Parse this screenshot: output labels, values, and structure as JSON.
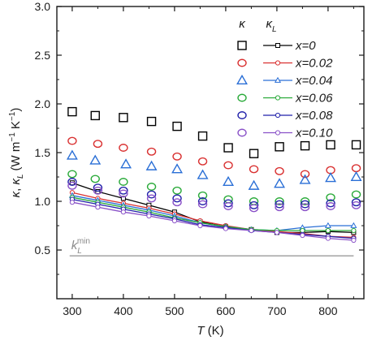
{
  "chart_data": {
    "type": "scatter",
    "xlabel_symbol": "T",
    "xlabel_unit": "(K)",
    "ylabel_symbols": [
      "κ",
      "κ",
      "L"
    ],
    "ylabel_unit_parts": [
      "(W m",
      "−1",
      " K",
      "−1",
      ")"
    ],
    "xlim": [
      270,
      870
    ],
    "ylim": [
      0.0,
      3.0
    ],
    "x_ticks": [
      300,
      400,
      500,
      600,
      700,
      800
    ],
    "y_ticks": [
      0.5,
      1.0,
      1.5,
      2.0,
      2.5,
      3.0
    ],
    "y_tick_labels": [
      "0.5",
      "1.0",
      "1.5",
      "2.0",
      "2.5",
      "3.0"
    ],
    "legend": {
      "placement": "top-right",
      "col1_header": "κ",
      "col2_header_base": "κ",
      "col2_header_sub": "L"
    },
    "min_line": {
      "y": 0.44,
      "x_range": [
        295,
        850
      ],
      "label_base": "k",
      "label_sub": "L",
      "label_sup": "min",
      "color": "#aaaaaa"
    },
    "series": [
      {
        "name": "x=0",
        "color": "#000000",
        "marker": "square",
        "kappa_x": [
          300,
          345,
          400,
          455,
          505,
          555,
          605,
          655,
          705,
          755,
          805,
          855
        ],
        "kappa_y": [
          1.92,
          1.88,
          1.86,
          1.82,
          1.77,
          1.67,
          1.55,
          1.49,
          1.56,
          1.57,
          1.58,
          1.58
        ],
        "kappaL_x": [
          300,
          350,
          400,
          450,
          500,
          550,
          600,
          650,
          700,
          750,
          800,
          850
        ],
        "kappaL_y": [
          1.19,
          1.1,
          1.03,
          0.96,
          0.89,
          0.79,
          0.74,
          0.71,
          0.68,
          0.68,
          0.69,
          0.68
        ]
      },
      {
        "name": "x=0.02",
        "color": "#d93030",
        "marker": "circle",
        "kappa_x": [
          300,
          350,
          400,
          455,
          505,
          555,
          605,
          655,
          705,
          755,
          805,
          855
        ],
        "kappa_y": [
          1.62,
          1.59,
          1.55,
          1.51,
          1.46,
          1.41,
          1.37,
          1.33,
          1.31,
          1.28,
          1.32,
          1.34
        ],
        "kappaL_x": [
          300,
          350,
          400,
          450,
          500,
          550,
          600,
          650,
          700,
          750,
          800,
          850
        ],
        "kappaL_y": [
          1.09,
          1.03,
          0.98,
          0.93,
          0.87,
          0.8,
          0.75,
          0.71,
          0.69,
          0.67,
          0.64,
          0.63
        ]
      },
      {
        "name": "x=0.04",
        "color": "#2a6fd6",
        "marker": "triangle",
        "kappa_x": [
          300,
          345,
          405,
          455,
          505,
          555,
          605,
          655,
          705,
          755,
          805,
          855
        ],
        "kappa_y": [
          1.47,
          1.42,
          1.38,
          1.36,
          1.33,
          1.27,
          1.2,
          1.16,
          1.18,
          1.22,
          1.24,
          1.25
        ],
        "kappaL_x": [
          300,
          350,
          400,
          450,
          500,
          550,
          600,
          650,
          700,
          750,
          800,
          850
        ],
        "kappaL_y": [
          1.06,
          1.01,
          0.96,
          0.91,
          0.85,
          0.78,
          0.74,
          0.71,
          0.7,
          0.73,
          0.75,
          0.75
        ]
      },
      {
        "name": "x=0.06",
        "color": "#2aaa3a",
        "marker": "circle",
        "kappa_x": [
          300,
          345,
          400,
          455,
          505,
          555,
          605,
          655,
          705,
          755,
          805,
          855
        ],
        "kappa_y": [
          1.28,
          1.23,
          1.2,
          1.15,
          1.11,
          1.06,
          1.02,
          1.0,
          1.0,
          1.0,
          1.04,
          1.07
        ],
        "kappaL_x": [
          300,
          350,
          400,
          450,
          500,
          550,
          600,
          650,
          700,
          750,
          800,
          850
        ],
        "kappaL_y": [
          1.04,
          0.99,
          0.94,
          0.89,
          0.83,
          0.78,
          0.74,
          0.71,
          0.7,
          0.7,
          0.7,
          0.7
        ]
      },
      {
        "name": "x=0.08",
        "color": "#2222aa",
        "marker": "circle",
        "kappa_x": [
          300,
          350,
          400,
          455,
          505,
          555,
          605,
          655,
          705,
          755,
          805,
          855
        ],
        "kappa_y": [
          1.2,
          1.14,
          1.11,
          1.07,
          1.03,
          1.0,
          0.98,
          0.96,
          0.97,
          0.97,
          0.98,
          0.99
        ],
        "kappaL_x": [
          300,
          350,
          400,
          450,
          500,
          550,
          600,
          650,
          700,
          750,
          800,
          850
        ],
        "kappaL_y": [
          1.02,
          0.97,
          0.92,
          0.87,
          0.82,
          0.76,
          0.73,
          0.7,
          0.68,
          0.66,
          0.64,
          0.62
        ]
      },
      {
        "name": "x=0.10",
        "color": "#8a52c8",
        "marker": "circle",
        "kappa_x": [
          300,
          350,
          400,
          455,
          505,
          555,
          605,
          655,
          705,
          755,
          805,
          855
        ],
        "kappa_y": [
          1.16,
          1.11,
          1.08,
          1.03,
          0.99,
          0.97,
          0.95,
          0.93,
          0.94,
          0.94,
          0.95,
          0.96
        ],
        "kappaL_x": [
          300,
          350,
          400,
          450,
          500,
          550,
          600,
          650,
          700,
          750,
          800,
          850
        ],
        "kappaL_y": [
          0.99,
          0.94,
          0.89,
          0.85,
          0.8,
          0.75,
          0.72,
          0.7,
          0.68,
          0.65,
          0.62,
          0.6
        ]
      }
    ]
  }
}
